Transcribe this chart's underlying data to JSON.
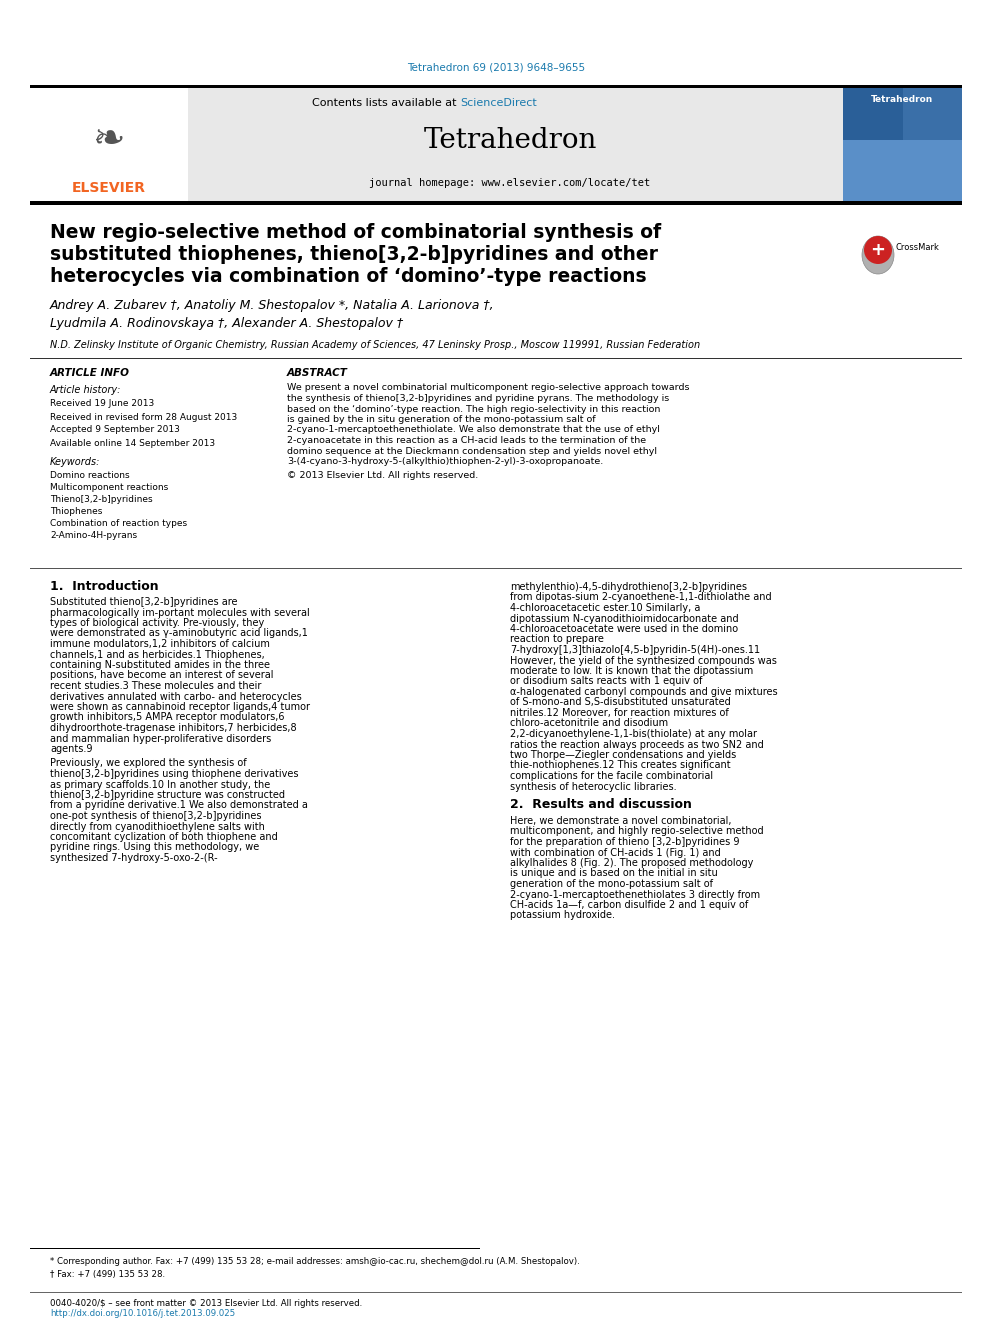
{
  "doi_text": "Tetrahedron 69 (2013) 9648–9655",
  "doi_color": "#1a7aad",
  "journal_name": "Tetrahedron",
  "journal_homepage": "journal homepage: www.elsevier.com/locate/tet",
  "contents_text": "Contents lists available at ",
  "sciencedirect_text": "ScienceDirect",
  "sciencedirect_color": "#1a7aad",
  "elsevier_color": "#f26522",
  "title_line1": "New regio-selective method of combinatorial synthesis of",
  "title_line2": "substituted thiophenes, thieno[3,2-b]pyridines and other",
  "title_line3": "heterocycles via combination of ‘domino’-type reactions",
  "authors": "Andrey A. Zubarev †, Anatoliy M. Shestopalov *, Natalia A. Larionova †,",
  "authors2": "Lyudmila A. Rodinovskaya †, Alexander A. Shestopalov †",
  "affiliation": "N.D. Zelinsky Institute of Organic Chemistry, Russian Academy of Sciences, 47 Leninsky Prosp., Moscow 119991, Russian Federation",
  "article_info_title": "ARTICLE INFO",
  "article_history_title": "Article history:",
  "received": "Received 19 June 2013",
  "revised": "Received in revised form 28 August 2013",
  "accepted": "Accepted 9 September 2013",
  "available": "Available online 14 September 2013",
  "keywords_title": "Keywords:",
  "keywords": [
    "Domino reactions",
    "Multicomponent reactions",
    "Thieno[3,2-b]pyridines",
    "Thiophenes",
    "Combination of reaction types",
    "2-Amino-4H-pyrans"
  ],
  "abstract_title": "ABSTRACT",
  "abstract_text": "We present a novel combinatorial multicomponent regio-selective approach towards the synthesis of thieno[3,2-b]pyridines and pyridine pyrans. The methodology is based on the ‘domino’-type reaction. The high regio-selectivity in this reaction is gained by the in situ generation of the mono-potassium salt of 2-cyano-1-mercaptoethenethiolate. We also demonstrate that the use of ethyl 2-cyanoacetate in this reaction as a CH-acid leads to the termination of the domino sequence at the Dieckmann condensation step and yields novel ethyl 3-(4-cyano-3-hydroxy-5-(alkylthio)thiophen-2-yl)-3-oxopropanoate.",
  "copyright": "© 2013 Elsevier Ltd. All rights reserved.",
  "intro_title": "1.  Introduction",
  "intro_text1": "Substituted thieno[3,2-b]pyridines are pharmacologically im-portant molecules with several types of biological activity. Pre-viously, they were demonstrated as γ-aminobutyric acid ligands,1 immune modulators,1,2 inhibitors of calcium channels,1 and as herbicides.1 Thiophenes, containing N-substituted amides in the three positions, have become an interest of several recent studies.3 These molecules and their derivatives annulated with carbo- and heterocycles were shown as cannabinoid receptor ligands,4 tumor growth inhibitors,5 AMPA receptor modulators,6 dihydroorthote-tragenase inhibitors,7 herbicides,8 and mammalian hyper-proliferative disorders agents.9",
  "intro_text2": "Previously, we explored the synthesis of thieno[3,2-b]pyridines using thiophene derivatives as primary scaffolds.10 In another study, the thieno[3,2-b]pyridine structure was constructed from a pyridine derivative.1 We also demonstrated a one-pot synthesis of thieno[3,2-b]pyridines directly from cyanodithioethylene salts with concomitant cyclization of both thiophene and pyridine rings. Using this methodology, we synthesized 7-hydroxy-5-oxo-2-(R-",
  "intro_text3_col2": "methylenthio)-4,5-dihydrothieno[3,2-b]pyridines from dipotas-sium 2-cyanoethene-1,1-dithiolathe and 4-chloroacetacetic ester.10 Similarly, a dipotassium N-cyanodithioimidocarbonate and 4-chloroacetoacetate were used in the domino reaction to prepare 7-hydroxy[1,3]thiazolo[4,5-b]pyridin-5(4H)-ones.11 However, the yield of the synthesized compounds was moderate to low. It is known that the dipotassium or disodium salts reacts with 1 equiv of α-halogenated carbonyl compounds and give mixtures of S-mono-and S,S-disubstituted unsaturated nitriles.12 Moreover, for reaction mixtures of chloro-acetonitrile and disodium 2,2-dicyanoethylene-1,1-bis(thiolate) at any molar ratios the reaction always proceeds as two SN2 and two Thorpe—Ziegler condensations and yields thie-nothiophenes.12 This creates significant complications for the facile combinatorial synthesis of heterocyclic libraries.",
  "results_title": "2.  Results and discussion",
  "results_text": "Here, we demonstrate a novel combinatorial, multicomponent, and highly regio-selective method for the preparation of thieno [3,2-b]pyridines 9 with combination of CH-acids 1 (Fig. 1) and alkylhalides 8 (Fig. 2). The proposed methodology is unique and is based on the initial in situ generation of the mono-potassium salt of 2-cyano-1-mercaptoethenethiolates 3 directly from CH-acids 1a—f, carbon disulfide 2 and 1 equiv of potassium hydroxide.",
  "footnote1": "* Corresponding author. Fax: +7 (499) 135 53 28; e-mail addresses: amsh@io-cac.ru, shechem@dol.ru (A.M. Shestopalov).",
  "footnote2": "† Fax: +7 (499) 135 53 28.",
  "bottom_text1": "0040-4020/$ – see front matter © 2013 Elsevier Ltd. All rights reserved.",
  "bottom_text2": "http://dx.doi.org/10.1016/j.tet.2013.09.025",
  "bg_color": "#ffffff",
  "header_bg": "#e8e8e8",
  "text_color": "#000000"
}
